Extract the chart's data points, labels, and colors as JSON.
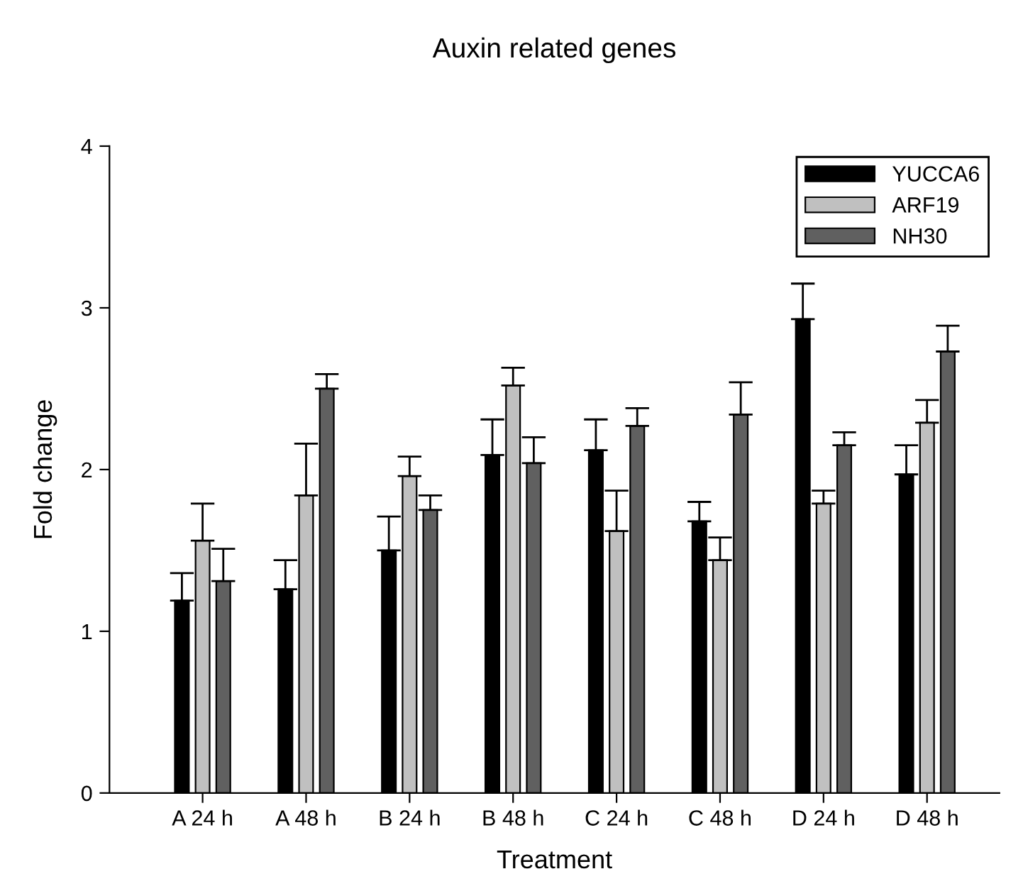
{
  "chart_data": {
    "type": "bar",
    "title": "Auxin related genes",
    "xlabel": "Treatment",
    "ylabel": "Fold change",
    "categories": [
      "A 24 h",
      "A 48 h",
      "B 24 h",
      "B 48 h",
      "C 24 h",
      "C 48 h",
      "D 24 h",
      "D 48 h"
    ],
    "series": [
      {
        "name": "YUCCA6",
        "color": "#000000",
        "values": [
          1.19,
          1.26,
          1.5,
          2.09,
          2.12,
          1.68,
          2.93,
          1.97
        ],
        "errors": [
          [
            1.19,
            1.36
          ],
          [
            1.26,
            1.44
          ],
          [
            1.5,
            1.71
          ],
          [
            2.09,
            2.31
          ],
          [
            2.12,
            2.31
          ],
          [
            1.68,
            1.8
          ],
          [
            2.93,
            3.15
          ],
          [
            1.97,
            2.15
          ]
        ]
      },
      {
        "name": "ARF19",
        "color": "#c0c0c0",
        "values": [
          1.56,
          1.84,
          1.96,
          2.52,
          1.62,
          1.44,
          1.79,
          2.29
        ],
        "errors": [
          [
            1.56,
            1.79
          ],
          [
            1.84,
            2.16
          ],
          [
            1.96,
            2.08
          ],
          [
            2.52,
            2.63
          ],
          [
            1.62,
            1.87
          ],
          [
            1.44,
            1.58
          ],
          [
            1.79,
            1.87
          ],
          [
            2.29,
            2.43
          ]
        ]
      },
      {
        "name": "NH30",
        "color": "#606060",
        "values": [
          1.31,
          2.5,
          1.75,
          2.04,
          2.27,
          2.34,
          2.15,
          2.73
        ],
        "errors": [
          [
            1.31,
            1.51
          ],
          [
            2.5,
            2.59
          ],
          [
            1.75,
            1.84
          ],
          [
            2.04,
            2.2
          ],
          [
            2.27,
            2.38
          ],
          [
            2.34,
            2.54
          ],
          [
            2.15,
            2.23
          ],
          [
            2.73,
            2.89
          ]
        ]
      }
    ],
    "ylim": [
      0,
      4
    ],
    "yticks": [
      0,
      1,
      2,
      3,
      4
    ],
    "grid": false,
    "legend": "top right"
  }
}
